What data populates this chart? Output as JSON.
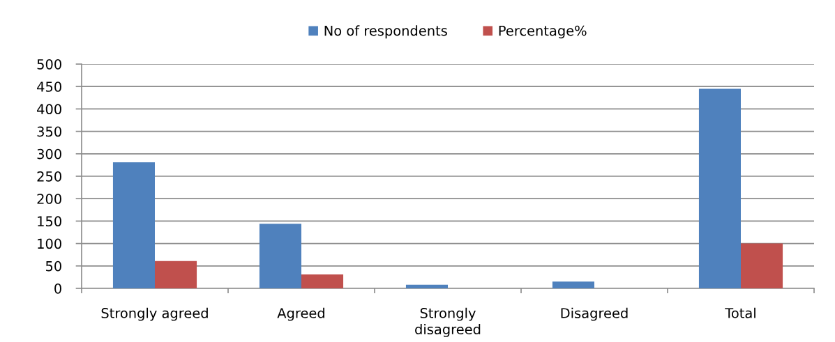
{
  "chart_data": {
    "type": "bar",
    "categories": [
      "Strongly agreed",
      "Agreed",
      "Strongly disagreed",
      "Disagreed",
      "Total"
    ],
    "series": [
      {
        "name": "No of respondents",
        "color": "#4f81bd",
        "values": [
          281,
          144,
          8,
          15,
          445
        ]
      },
      {
        "name": "Percentage%",
        "color": "#c0504d",
        "values": [
          61,
          31,
          null,
          null,
          100
        ]
      }
    ],
    "ylim": [
      0,
      500
    ],
    "yticks": [
      0,
      50,
      100,
      150,
      200,
      250,
      300,
      350,
      400,
      450,
      500
    ],
    "grid": "y",
    "legend": "top"
  }
}
